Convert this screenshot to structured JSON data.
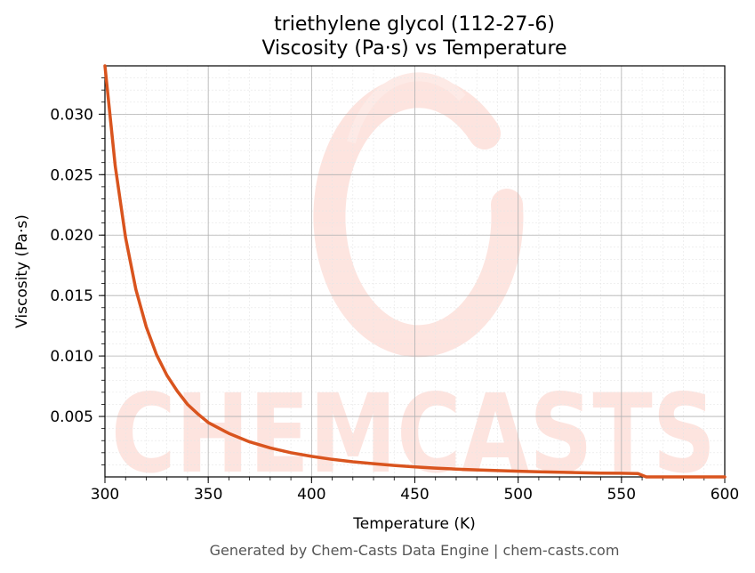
{
  "chart_data": {
    "type": "line",
    "title": "triethylene glycol (112-27-6)",
    "subtitle": "Viscosity (Pa·s) vs Temperature",
    "xlabel": "Temperature (K)",
    "ylabel": "Viscosity (Pa·s)",
    "xlim": [
      300,
      600
    ],
    "ylim": [
      0,
      0.034
    ],
    "x_ticks": [
      300,
      350,
      400,
      450,
      500,
      550,
      600
    ],
    "x_tick_labels": [
      "300",
      "350",
      "400",
      "450",
      "500",
      "550",
      "600"
    ],
    "y_ticks": [
      0.005,
      0.01,
      0.015,
      0.02,
      0.025,
      0.03
    ],
    "y_tick_labels": [
      "0.005",
      "0.010",
      "0.015",
      "0.020",
      "0.025",
      "0.030"
    ],
    "grid": true,
    "line_color": "#d9541e",
    "series": [
      {
        "x": [
          300,
          305,
          310,
          315,
          320,
          325,
          330,
          335,
          340,
          345,
          350,
          360,
          370,
          380,
          390,
          400,
          410,
          420,
          430,
          440,
          450,
          460,
          470,
          480,
          490,
          500,
          510,
          520,
          530,
          540,
          550,
          558,
          562,
          570,
          580,
          590,
          600
        ],
        "y": [
          0.034,
          0.0257,
          0.0198,
          0.0155,
          0.0124,
          0.0101,
          0.0084,
          0.0071,
          0.006,
          0.0052,
          0.0045,
          0.0036,
          0.0029,
          0.0024,
          0.002,
          0.0017,
          0.00145,
          0.00125,
          0.0011,
          0.00095,
          0.00083,
          0.00073,
          0.00065,
          0.00058,
          0.00052,
          0.00047,
          0.00042,
          0.00038,
          0.00035,
          0.00032,
          0.0003,
          0.00028,
          0.0,
          0.0,
          0.0,
          0.0,
          0.0
        ]
      }
    ]
  },
  "watermark": "CHEMCASTS",
  "watermark_color": "#fde0da",
  "footer": "Generated by Chem-Casts Data Engine | chem-casts.com"
}
